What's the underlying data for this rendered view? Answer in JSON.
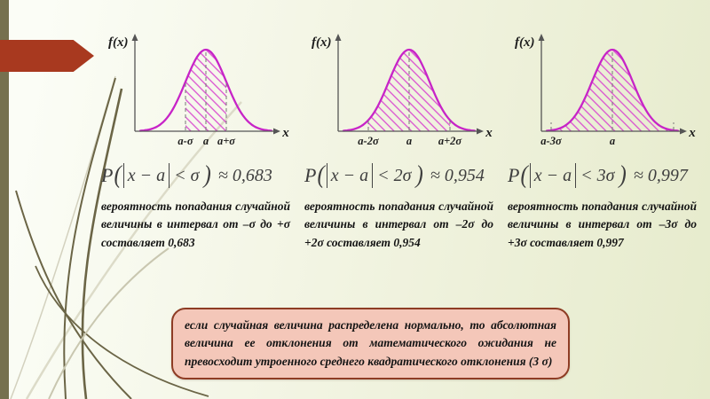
{
  "slide": {
    "accent_bar_color": "#76704e",
    "arrow_color": "#a8391f",
    "curve_color": "#c724c7",
    "hatch_color": "#d94fd0",
    "note_fill": "#f4c7b9",
    "note_border": "#8e3c24"
  },
  "charts": [
    {
      "ylabel": "f(x)",
      "xlabel": "x",
      "hatch_sigma": 1,
      "dashes": [
        -1,
        0,
        1
      ],
      "end_ticks": false,
      "ticks": [
        {
          "m": -1,
          "label": "a-σ"
        },
        {
          "m": 0,
          "label": "a"
        },
        {
          "m": 1,
          "label": "a+σ"
        }
      ]
    },
    {
      "ylabel": "f(x)",
      "xlabel": "x",
      "hatch_sigma": 2,
      "dashes": [
        -2,
        0,
        2
      ],
      "end_ticks": false,
      "ticks": [
        {
          "m": -2,
          "label": "a-2σ"
        },
        {
          "m": 0,
          "label": "a"
        },
        {
          "m": 2,
          "label": "a+2σ"
        }
      ]
    },
    {
      "ylabel": "f(x)",
      "xlabel": "x",
      "hatch_sigma": 3,
      "dashes": [
        0
      ],
      "end_ticks": true,
      "ticks": [
        {
          "m": -3,
          "label": "a-3σ"
        },
        {
          "m": 0,
          "label": "a"
        }
      ]
    }
  ],
  "columns": [
    {
      "formula": {
        "p": "P",
        "open": "(",
        "expr": "x − a",
        "cmp": "< σ",
        "close": ")",
        "approx": "≈ 0,683"
      },
      "description": "вероятность попадания случайной величины в интервал от –σ до +σ составляет 0,683"
    },
    {
      "formula": {
        "p": "P",
        "open": "(",
        "expr": "x − a",
        "cmp": "< 2σ",
        "close": ")",
        "approx": "≈ 0,954"
      },
      "description": "вероятность попадания случайной величины в интервал от –2σ до +2σ составляет 0,954"
    },
    {
      "formula": {
        "p": "P",
        "open": "(",
        "expr": "x − a",
        "cmp": "< 3σ",
        "close": ")",
        "approx": "≈ 0,997"
      },
      "description": "вероятность попадания случайной величины в интервал от –3σ до +3σ составляет 0,997"
    }
  ],
  "note": {
    "text": "если случайная величина распределена нормально, то абсолютная величина ее отклонения от математического ожидания не превосходит утроенного среднего квадратического отклонения (3 σ)"
  }
}
